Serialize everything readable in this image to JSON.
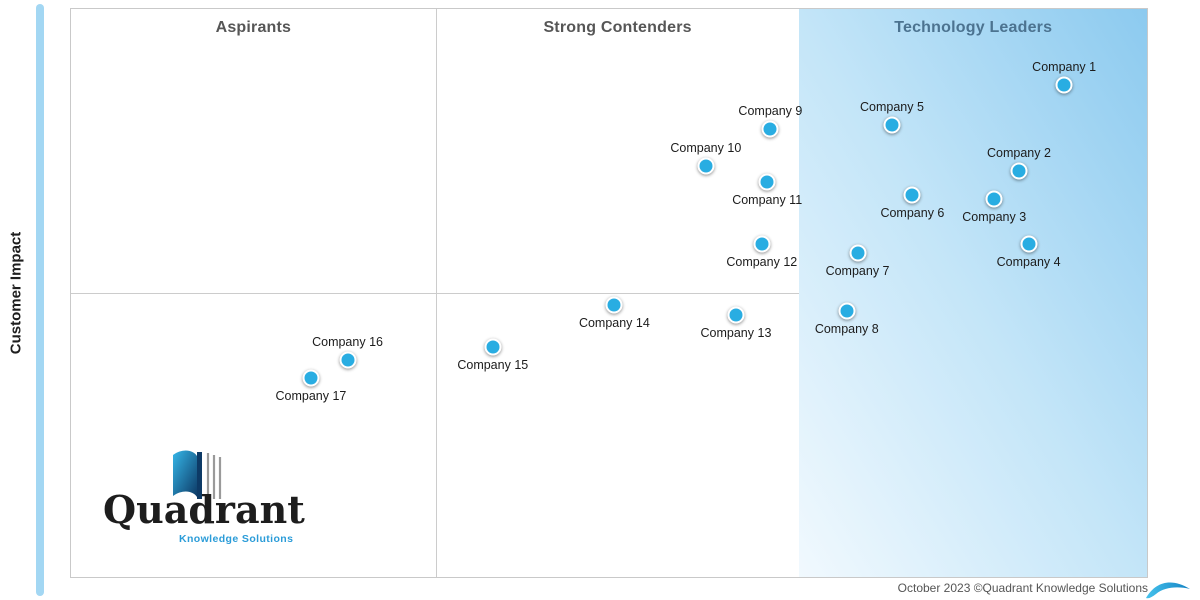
{
  "axis": {
    "y_label": "Customer Impact"
  },
  "footer": {
    "credit": "October 2023 ©Quadrant Knowledge Solutions"
  },
  "logo": {
    "wordmark": "Quadrant",
    "tagline": "Knowledge Solutions"
  },
  "colors": {
    "dot_fill": "#29ade2",
    "leaders_zone_gradient_start": "#f1f9fe",
    "leaders_zone_gradient_end": "#8ccaef",
    "accent_bar": "#a3d7f3",
    "header_text": "#565656",
    "leaders_header_text": "#4c7390",
    "grid_line": "#cccccc"
  },
  "chart_data": {
    "type": "scatter",
    "ylabel": "Customer Impact",
    "xlabel": "",
    "coords": "percent of plot area; x from left edge, y from top edge",
    "grid": "off",
    "sections": [
      {
        "label": "Aspirants",
        "x_range": [
          0,
          33.9
        ]
      },
      {
        "label": "Strong Contenders",
        "x_range": [
          33.9,
          67.7
        ]
      },
      {
        "label": "Technology Leaders",
        "x_range": [
          67.7,
          100
        ],
        "highlighted": true
      }
    ],
    "horizontal_divider_y": 50,
    "points": [
      {
        "label": "Company 1",
        "x": 92.3,
        "y": 13.3,
        "label_pos": "above"
      },
      {
        "label": "Company 2",
        "x": 88.1,
        "y": 28.6,
        "label_pos": "above"
      },
      {
        "label": "Company 3",
        "x": 85.8,
        "y": 33.5,
        "label_pos": "below"
      },
      {
        "label": "Company 4",
        "x": 89.0,
        "y": 41.4,
        "label_pos": "below"
      },
      {
        "label": "Company 5",
        "x": 76.3,
        "y": 20.5,
        "label_pos": "above"
      },
      {
        "label": "Company 6",
        "x": 78.2,
        "y": 32.8,
        "label_pos": "below"
      },
      {
        "label": "Company 7",
        "x": 73.1,
        "y": 43.0,
        "label_pos": "below"
      },
      {
        "label": "Company 8",
        "x": 72.1,
        "y": 53.2,
        "label_pos": "below"
      },
      {
        "label": "Company 9",
        "x": 65.0,
        "y": 21.2,
        "label_pos": "above"
      },
      {
        "label": "Company 10",
        "x": 59.0,
        "y": 27.7,
        "label_pos": "above"
      },
      {
        "label": "Company 11",
        "x": 64.7,
        "y": 30.4,
        "label_pos": "below"
      },
      {
        "label": "Company 12",
        "x": 64.2,
        "y": 41.4,
        "label_pos": "below"
      },
      {
        "label": "Company 13",
        "x": 61.8,
        "y": 53.9,
        "label_pos": "below"
      },
      {
        "label": "Company 14",
        "x": 50.5,
        "y": 52.1,
        "label_pos": "below"
      },
      {
        "label": "Company 15",
        "x": 39.2,
        "y": 59.5,
        "label_pos": "below"
      },
      {
        "label": "Company 16",
        "x": 25.7,
        "y": 61.8,
        "label_pos": "above"
      },
      {
        "label": "Company 17",
        "x": 22.3,
        "y": 64.9,
        "label_pos": "below"
      }
    ]
  }
}
